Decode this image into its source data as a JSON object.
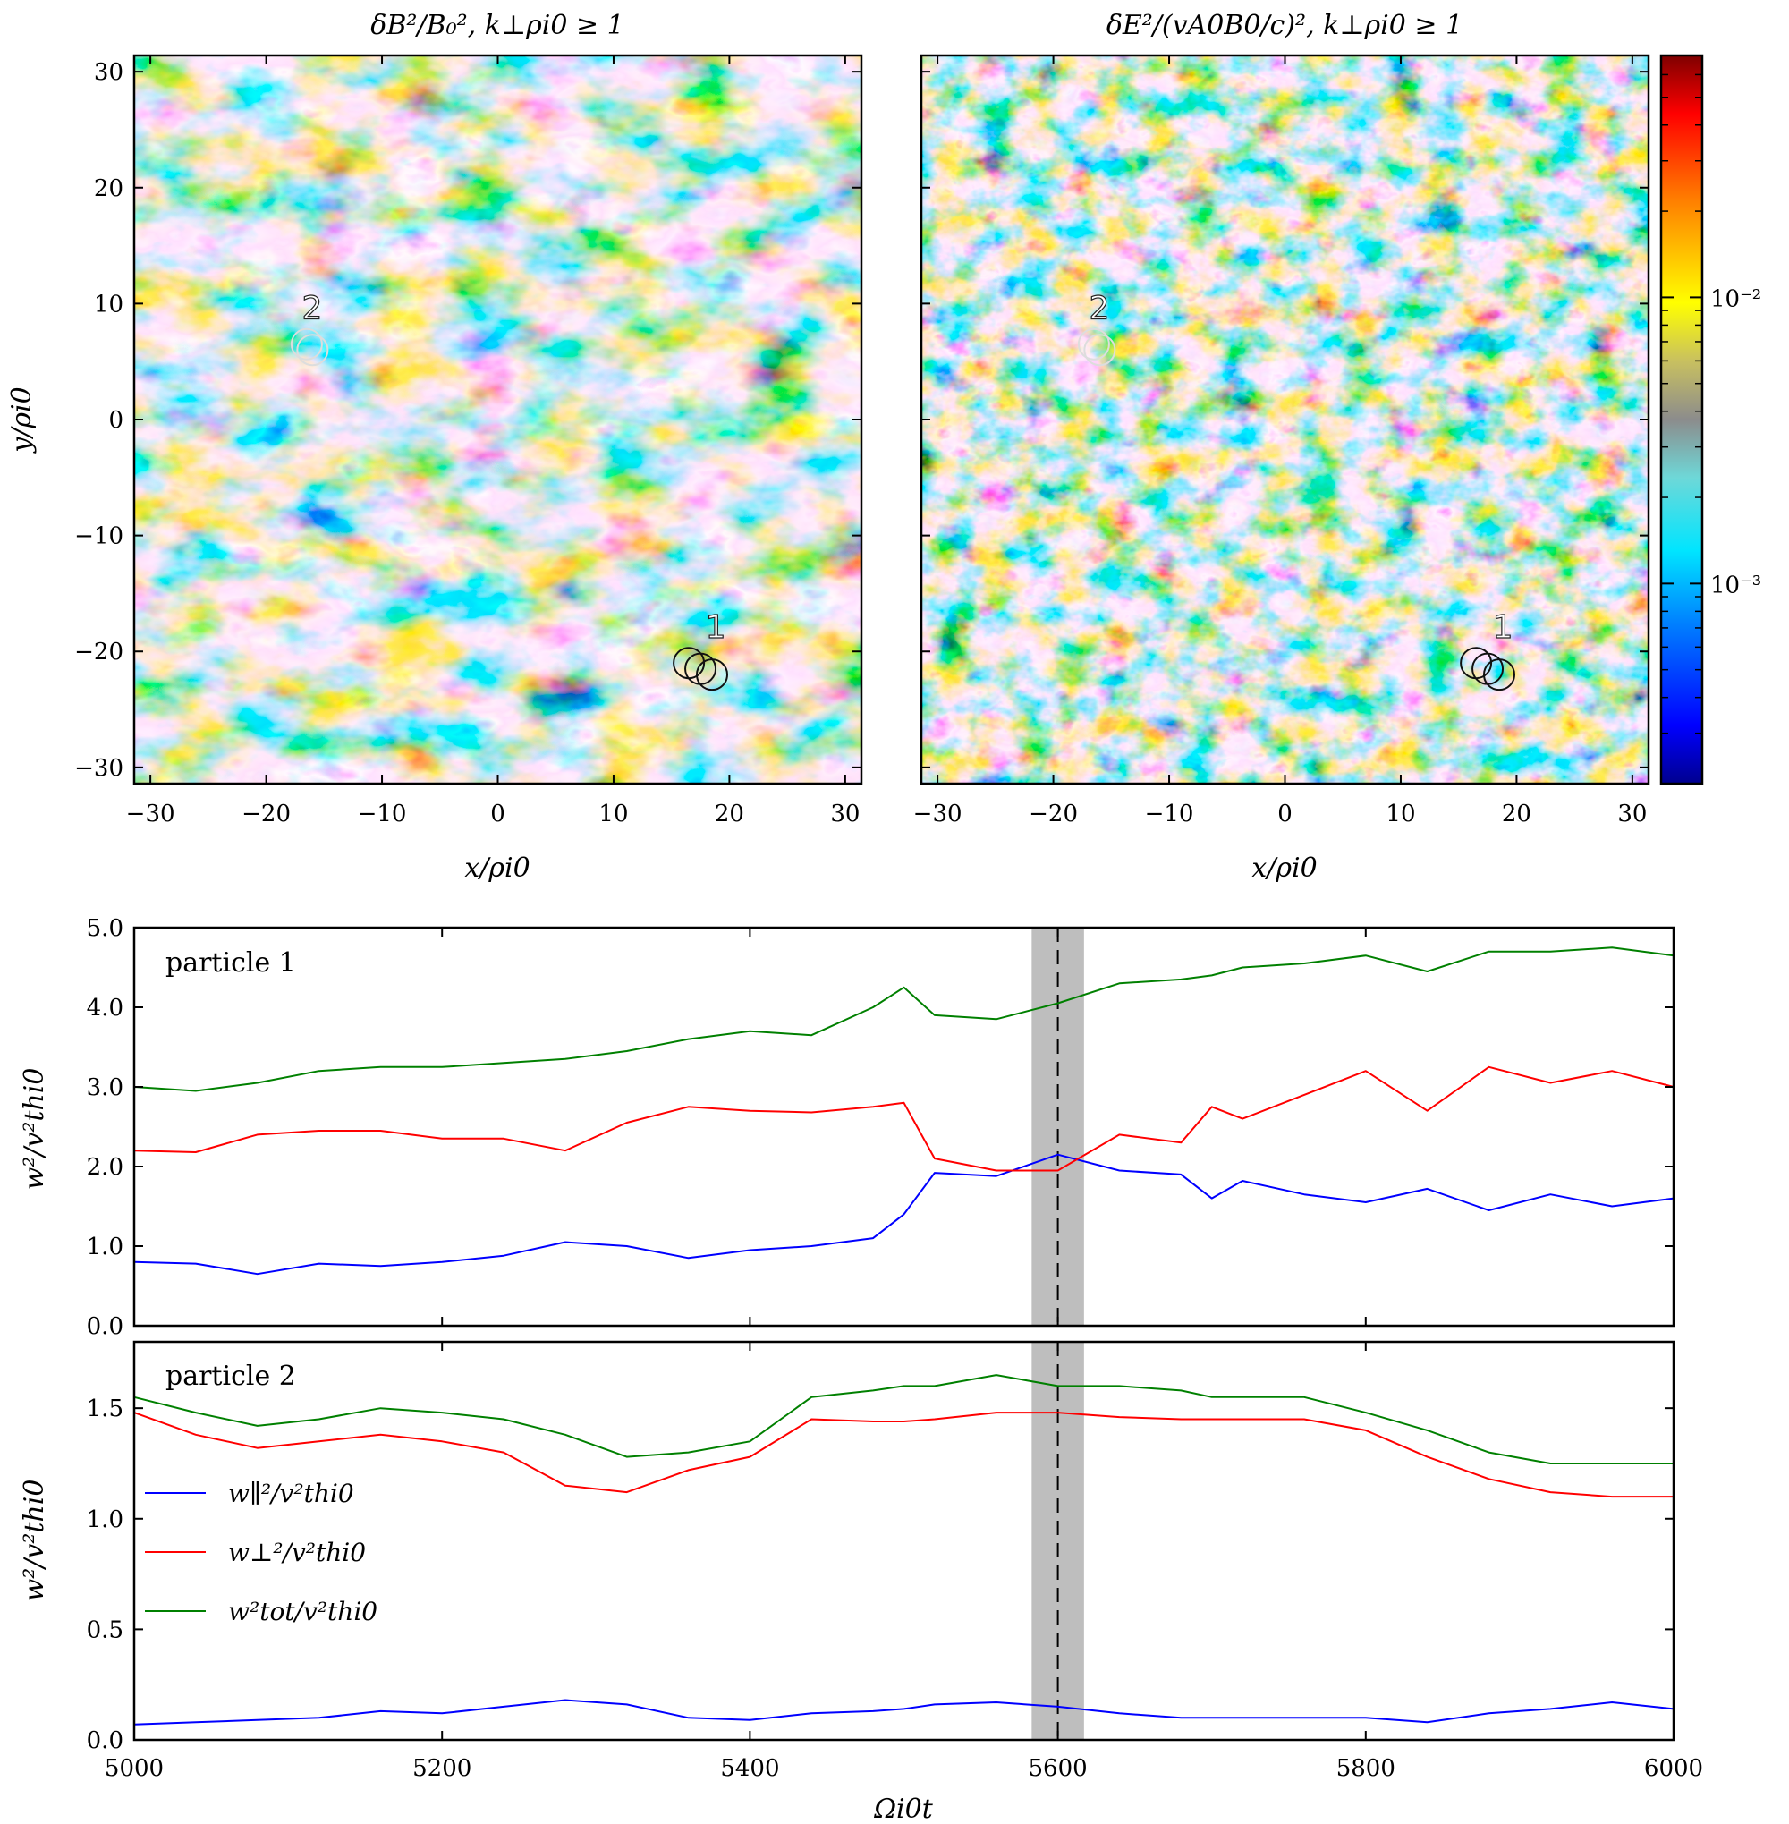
{
  "maps": {
    "left_title": "δB²/B₀²,  k⊥ρi0 ≥ 1",
    "right_title": "δE²/(vA0B0/c)²,  k⊥ρi0 ≥ 1",
    "xlabel": "x/ρi0",
    "ylabel": "y/ρi0",
    "x_ticks": [
      "−30",
      "−20",
      "−10",
      "0",
      "10",
      "20",
      "30"
    ],
    "y_ticks": [
      "30",
      "20",
      "10",
      "0",
      "−10",
      "−20",
      "−30"
    ],
    "colorbar_ticks": [
      "10⁻²",
      "10⁻³"
    ],
    "markers": [
      "1",
      "2"
    ],
    "colors": {
      "low": "#00008f",
      "mid": "#8c8c8c",
      "high": "#7f0000"
    }
  },
  "time_series": {
    "xlabel": "Ωi0t",
    "ylabel": "w²/v²thi0",
    "x_ticks": [
      "5000",
      "5200",
      "5400",
      "5600",
      "5800",
      "6000"
    ],
    "panel1_label": "particle 1",
    "panel1_y_ticks": [
      "0.0",
      "1.0",
      "2.0",
      "3.0",
      "4.0",
      "5.0"
    ],
    "panel2_label": "particle 2",
    "panel2_y_ticks": [
      "0.0",
      "0.5",
      "1.0",
      "1.5"
    ],
    "legend": [
      "w∥²/v²thi0",
      "w⊥²/v²thi0",
      "w²tot/v²thi0"
    ],
    "colors": {
      "parallel": "#0000ff",
      "perp": "#ff0000",
      "tot": "#008000",
      "band": "#bebebe"
    }
  },
  "chart_data": [
    {
      "type": "heatmap",
      "title": "δB²/B₀²,  k⊥ρi0 ≥ 1",
      "xlabel": "x/ρi0",
      "ylabel": "y/ρi0",
      "xlim": [
        -31.4,
        31.4
      ],
      "ylim": [
        -31.4,
        31.4
      ],
      "color_scale": "log",
      "colorbar_range": [
        0.0002,
        0.07
      ],
      "particle_markers": [
        {
          "label": "1",
          "x": [
            16.5,
            17.5,
            18.5
          ],
          "y": [
            -21,
            -21.5,
            -22
          ]
        },
        {
          "label": "2",
          "x": [
            -16.5,
            -16
          ],
          "y": [
            6.5,
            6
          ]
        }
      ]
    },
    {
      "type": "heatmap",
      "title": "δE²/(vA0B0/c)²,  k⊥ρi0 ≥ 1",
      "xlabel": "x/ρi0",
      "xlim": [
        -31.4,
        31.4
      ],
      "ylim": [
        -31.4,
        31.4
      ],
      "color_scale": "log",
      "colorbar_range": [
        0.0002,
        0.07
      ],
      "particle_markers": [
        {
          "label": "1",
          "x": [
            16.5,
            17.5,
            18.5
          ],
          "y": [
            -21,
            -21.5,
            -22
          ]
        },
        {
          "label": "2",
          "x": [
            -16.5,
            -16
          ],
          "y": [
            6.5,
            6
          ]
        }
      ]
    },
    {
      "type": "line",
      "label": "particle 1",
      "xlabel": "",
      "ylabel": "w²/v²thi0",
      "xlim": [
        5000,
        6000
      ],
      "ylim": [
        0,
        5
      ],
      "highlight": {
        "center": 5600,
        "band": [
          5583,
          5617
        ]
      },
      "x": [
        5000,
        5040,
        5080,
        5120,
        5160,
        5200,
        5240,
        5280,
        5320,
        5360,
        5400,
        5440,
        5480,
        5500,
        5520,
        5560,
        5600,
        5640,
        5680,
        5700,
        5720,
        5760,
        5800,
        5840,
        5880,
        5920,
        5960,
        6000
      ],
      "series": [
        {
          "name": "w∥²/v²thi0",
          "values": [
            0.8,
            0.78,
            0.65,
            0.78,
            0.75,
            0.8,
            0.88,
            1.05,
            1.0,
            0.85,
            0.95,
            1.0,
            1.1,
            1.4,
            1.92,
            1.88,
            2.15,
            1.95,
            1.9,
            1.6,
            1.82,
            1.65,
            1.55,
            1.72,
            1.45,
            1.65,
            1.5,
            1.6
          ]
        },
        {
          "name": "w⊥²/v²thi0",
          "values": [
            2.2,
            2.18,
            2.4,
            2.45,
            2.45,
            2.35,
            2.35,
            2.2,
            2.55,
            2.75,
            2.7,
            2.68,
            2.75,
            2.8,
            2.1,
            1.95,
            1.95,
            2.4,
            2.3,
            2.75,
            2.6,
            2.9,
            3.2,
            2.7,
            3.25,
            3.05,
            3.2,
            3.0
          ]
        },
        {
          "name": "w²tot/v²thi0",
          "values": [
            3.0,
            2.95,
            3.05,
            3.2,
            3.25,
            3.25,
            3.3,
            3.35,
            3.45,
            3.6,
            3.7,
            3.65,
            4.0,
            4.25,
            3.9,
            3.85,
            4.05,
            4.3,
            4.35,
            4.4,
            4.5,
            4.55,
            4.65,
            4.45,
            4.7,
            4.7,
            4.75,
            4.65
          ]
        }
      ]
    },
    {
      "type": "line",
      "label": "particle 2",
      "xlabel": "Ωi0t",
      "ylabel": "w²/v²thi0",
      "xlim": [
        5000,
        6000
      ],
      "ylim": [
        0,
        1.8
      ],
      "highlight": {
        "center": 5600,
        "band": [
          5583,
          5617
        ]
      },
      "x": [
        5000,
        5040,
        5080,
        5120,
        5160,
        5200,
        5240,
        5280,
        5320,
        5360,
        5400,
        5440,
        5480,
        5500,
        5520,
        5560,
        5600,
        5640,
        5680,
        5700,
        5720,
        5760,
        5800,
        5840,
        5880,
        5920,
        5960,
        6000
      ],
      "series": [
        {
          "name": "w∥²/v²thi0",
          "values": [
            0.07,
            0.08,
            0.09,
            0.1,
            0.13,
            0.12,
            0.15,
            0.18,
            0.16,
            0.1,
            0.09,
            0.12,
            0.13,
            0.14,
            0.16,
            0.17,
            0.15,
            0.12,
            0.1,
            0.1,
            0.1,
            0.1,
            0.1,
            0.08,
            0.12,
            0.14,
            0.17,
            0.14
          ]
        },
        {
          "name": "w⊥²/v²thi0",
          "values": [
            1.48,
            1.38,
            1.32,
            1.35,
            1.38,
            1.35,
            1.3,
            1.15,
            1.12,
            1.22,
            1.28,
            1.45,
            1.44,
            1.44,
            1.45,
            1.48,
            1.48,
            1.46,
            1.45,
            1.45,
            1.45,
            1.45,
            1.4,
            1.28,
            1.18,
            1.12,
            1.1,
            1.1
          ]
        },
        {
          "name": "w²tot/v²thi0",
          "values": [
            1.55,
            1.48,
            1.42,
            1.45,
            1.5,
            1.48,
            1.45,
            1.38,
            1.28,
            1.3,
            1.35,
            1.55,
            1.58,
            1.6,
            1.6,
            1.65,
            1.6,
            1.6,
            1.58,
            1.55,
            1.55,
            1.55,
            1.48,
            1.4,
            1.3,
            1.25,
            1.25,
            1.25
          ]
        }
      ]
    }
  ]
}
